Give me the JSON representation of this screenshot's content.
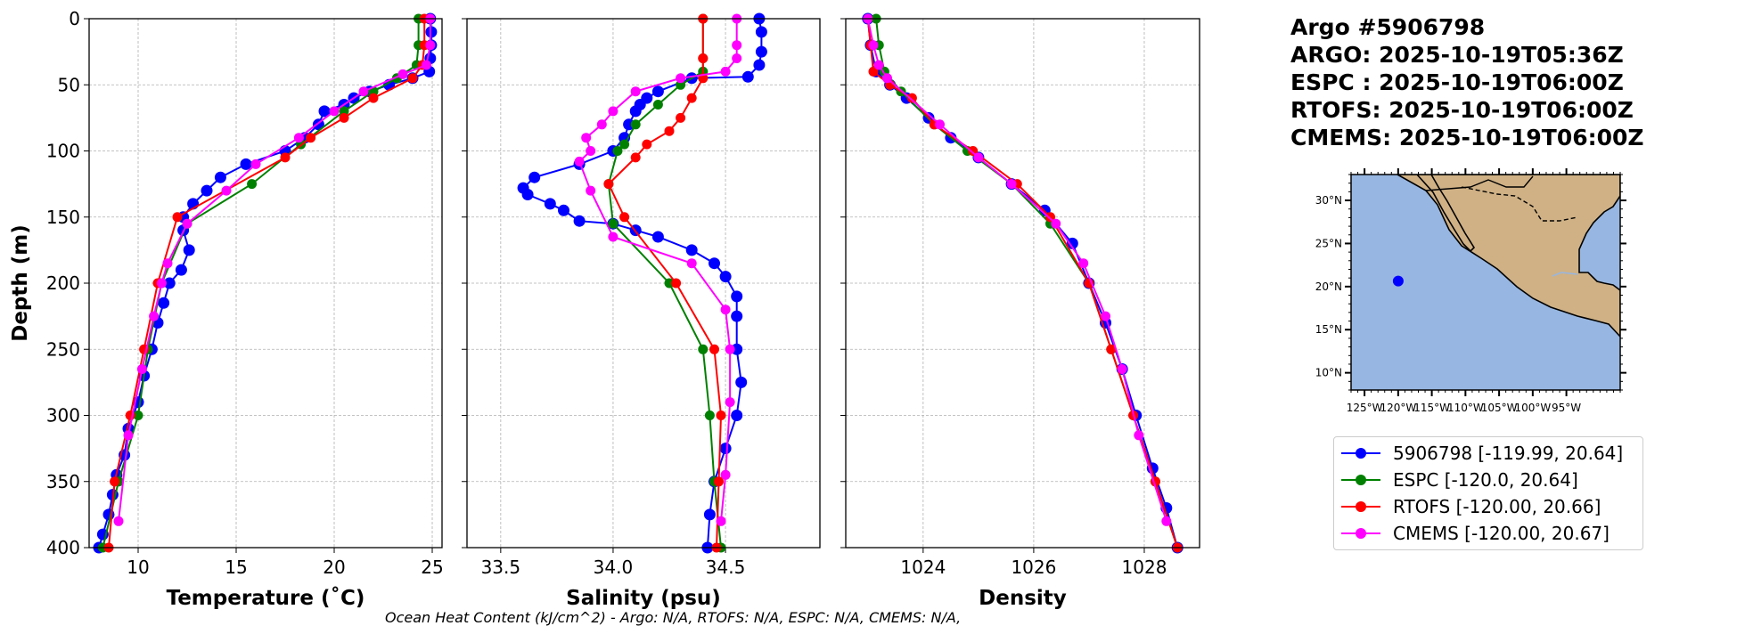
{
  "chart_data": [
    {
      "type": "line",
      "xlabel": "Temperature (˚C)",
      "ylabel": "Depth (m)",
      "xlim": [
        7.5,
        25.5
      ],
      "ylim": [
        400,
        0
      ],
      "xticks": [
        10,
        15,
        20,
        25
      ],
      "yticks": [
        0,
        50,
        100,
        150,
        200,
        250,
        300,
        350,
        400
      ],
      "grid": true,
      "series": [
        {
          "name": "5906798",
          "color": "#0000ff",
          "points": [
            [
              24.9,
              0
            ],
            [
              24.95,
              10
            ],
            [
              24.95,
              20
            ],
            [
              24.9,
              30
            ],
            [
              24.85,
              40
            ],
            [
              24.0,
              45
            ],
            [
              22.8,
              50
            ],
            [
              21.8,
              55
            ],
            [
              21.0,
              60
            ],
            [
              20.5,
              65
            ],
            [
              19.5,
              70
            ],
            [
              19.2,
              80
            ],
            [
              18.5,
              90
            ],
            [
              17.5,
              100
            ],
            [
              15.5,
              110
            ],
            [
              14.2,
              120
            ],
            [
              13.5,
              130
            ],
            [
              12.8,
              140
            ],
            [
              12.3,
              150
            ],
            [
              12.3,
              160
            ],
            [
              12.6,
              175
            ],
            [
              12.2,
              190
            ],
            [
              11.6,
              200
            ],
            [
              11.3,
              215
            ],
            [
              11.0,
              230
            ],
            [
              10.7,
              250
            ],
            [
              10.3,
              270
            ],
            [
              10.0,
              290
            ],
            [
              9.5,
              310
            ],
            [
              9.3,
              330
            ],
            [
              8.9,
              345
            ],
            [
              8.7,
              360
            ],
            [
              8.5,
              375
            ],
            [
              8.2,
              390
            ],
            [
              8.0,
              400
            ]
          ]
        },
        {
          "name": "ESPC",
          "color": "#008000",
          "points": [
            [
              24.3,
              0
            ],
            [
              24.3,
              20
            ],
            [
              24.2,
              35
            ],
            [
              23.2,
              45
            ],
            [
              22.0,
              55
            ],
            [
              20.5,
              70
            ],
            [
              18.3,
              95
            ],
            [
              15.8,
              125
            ],
            [
              12.5,
              155
            ],
            [
              11.2,
              200
            ],
            [
              10.5,
              250
            ],
            [
              10.0,
              300
            ],
            [
              9.0,
              350
            ],
            [
              8.2,
              400
            ]
          ]
        },
        {
          "name": "RTOFS",
          "color": "#ff0000",
          "points": [
            [
              24.6,
              0
            ],
            [
              24.6,
              20
            ],
            [
              24.5,
              35
            ],
            [
              24.0,
              45
            ],
            [
              22.0,
              60
            ],
            [
              20.5,
              75
            ],
            [
              18.8,
              90
            ],
            [
              17.5,
              105
            ],
            [
              12.0,
              150
            ],
            [
              11.0,
              200
            ],
            [
              10.3,
              250
            ],
            [
              9.6,
              300
            ],
            [
              8.8,
              350
            ],
            [
              8.5,
              400
            ]
          ]
        },
        {
          "name": "CMEMS",
          "color": "#ff00ff",
          "points": [
            [
              24.9,
              0
            ],
            [
              24.9,
              20
            ],
            [
              24.7,
              35
            ],
            [
              23.5,
              42
            ],
            [
              21.5,
              55
            ],
            [
              20.0,
              70
            ],
            [
              18.2,
              90
            ],
            [
              16.0,
              110
            ],
            [
              14.5,
              130
            ],
            [
              12.5,
              155
            ],
            [
              11.5,
              185
            ],
            [
              11.2,
              200
            ],
            [
              10.8,
              225
            ],
            [
              10.2,
              265
            ],
            [
              9.5,
              315
            ],
            [
              9.0,
              380
            ]
          ]
        }
      ]
    },
    {
      "type": "line",
      "xlabel": "Salinity (psu)",
      "ylabel": "",
      "xlim": [
        33.35,
        34.92
      ],
      "ylim": [
        400,
        0
      ],
      "xticks": [
        33.5,
        34.0,
        34.5
      ],
      "tick_labels": [
        "33.5",
        "34.0",
        "34.5"
      ],
      "yticks": [
        0,
        50,
        100,
        150,
        200,
        250,
        300,
        350,
        400
      ],
      "grid": true,
      "series": [
        {
          "name": "5906798",
          "color": "#0000ff",
          "points": [
            [
              34.65,
              0
            ],
            [
              34.66,
              10
            ],
            [
              34.66,
              25
            ],
            [
              34.65,
              35
            ],
            [
              34.6,
              44
            ],
            [
              34.35,
              45
            ],
            [
              34.2,
              55
            ],
            [
              34.15,
              60
            ],
            [
              34.12,
              65
            ],
            [
              34.1,
              70
            ],
            [
              34.07,
              80
            ],
            [
              34.05,
              90
            ],
            [
              34.0,
              100
            ],
            [
              33.85,
              110
            ],
            [
              33.65,
              120
            ],
            [
              33.6,
              128
            ],
            [
              33.62,
              133
            ],
            [
              33.72,
              140
            ],
            [
              33.78,
              145
            ],
            [
              33.85,
              153
            ],
            [
              34.0,
              155
            ],
            [
              34.1,
              160
            ],
            [
              34.2,
              165
            ],
            [
              34.35,
              175
            ],
            [
              34.45,
              185
            ],
            [
              34.5,
              195
            ],
            [
              34.55,
              210
            ],
            [
              34.55,
              225
            ],
            [
              34.55,
              250
            ],
            [
              34.57,
              275
            ],
            [
              34.55,
              300
            ],
            [
              34.5,
              325
            ],
            [
              34.45,
              350
            ],
            [
              34.43,
              375
            ],
            [
              34.42,
              400
            ]
          ]
        },
        {
          "name": "ESPC",
          "color": "#008000",
          "points": [
            [
              34.4,
              0
            ],
            [
              34.4,
              30
            ],
            [
              34.4,
              40
            ],
            [
              34.3,
              50
            ],
            [
              34.2,
              65
            ],
            [
              34.1,
              80
            ],
            [
              34.05,
              95
            ],
            [
              34.02,
              100
            ],
            [
              33.98,
              125
            ],
            [
              34.0,
              155
            ],
            [
              34.25,
              200
            ],
            [
              34.4,
              250
            ],
            [
              34.43,
              300
            ],
            [
              34.45,
              350
            ],
            [
              34.48,
              400
            ]
          ]
        },
        {
          "name": "RTOFS",
          "color": "#ff0000",
          "points": [
            [
              34.4,
              0
            ],
            [
              34.4,
              30
            ],
            [
              34.4,
              45
            ],
            [
              34.35,
              60
            ],
            [
              34.3,
              75
            ],
            [
              34.25,
              85
            ],
            [
              34.15,
              95
            ],
            [
              34.1,
              105
            ],
            [
              33.98,
              125
            ],
            [
              34.05,
              150
            ],
            [
              34.28,
              200
            ],
            [
              34.45,
              250
            ],
            [
              34.48,
              300
            ],
            [
              34.47,
              350
            ],
            [
              34.46,
              400
            ]
          ]
        },
        {
          "name": "CMEMS",
          "color": "#ff00ff",
          "points": [
            [
              34.55,
              0
            ],
            [
              34.55,
              20
            ],
            [
              34.55,
              30
            ],
            [
              34.5,
              40
            ],
            [
              34.3,
              45
            ],
            [
              34.1,
              55
            ],
            [
              34.0,
              70
            ],
            [
              33.95,
              80
            ],
            [
              33.88,
              90
            ],
            [
              33.9,
              100
            ],
            [
              33.85,
              108
            ],
            [
              33.9,
              130
            ],
            [
              34.0,
              165
            ],
            [
              34.35,
              185
            ],
            [
              34.5,
              220
            ],
            [
              34.52,
              250
            ],
            [
              34.52,
              290
            ],
            [
              34.5,
              345
            ],
            [
              34.48,
              380
            ]
          ]
        }
      ]
    },
    {
      "type": "line",
      "xlabel": "Density",
      "ylabel": "",
      "xlim": [
        1022.6,
        1029.0
      ],
      "ylim": [
        400,
        0
      ],
      "xticks": [
        1024,
        1026,
        1028
      ],
      "yticks": [
        0,
        50,
        100,
        150,
        200,
        250,
        300,
        350,
        400
      ],
      "grid": true,
      "series": [
        {
          "name": "5906798",
          "color": "#0000ff",
          "points": [
            [
              1023.0,
              0
            ],
            [
              1023.05,
              20
            ],
            [
              1023.15,
              40
            ],
            [
              1023.4,
              50
            ],
            [
              1023.7,
              60
            ],
            [
              1024.1,
              75
            ],
            [
              1024.5,
              90
            ],
            [
              1025.0,
              105
            ],
            [
              1025.6,
              125
            ],
            [
              1026.2,
              145
            ],
            [
              1026.7,
              170
            ],
            [
              1027.0,
              200
            ],
            [
              1027.3,
              230
            ],
            [
              1027.6,
              265
            ],
            [
              1027.85,
              300
            ],
            [
              1028.15,
              340
            ],
            [
              1028.4,
              370
            ],
            [
              1028.6,
              400
            ]
          ]
        },
        {
          "name": "ESPC",
          "color": "#008000",
          "points": [
            [
              1023.15,
              0
            ],
            [
              1023.2,
              20
            ],
            [
              1023.3,
              40
            ],
            [
              1023.6,
              55
            ],
            [
              1024.2,
              80
            ],
            [
              1024.8,
              100
            ],
            [
              1025.6,
              125
            ],
            [
              1026.3,
              155
            ],
            [
              1027.0,
              200
            ],
            [
              1027.4,
              250
            ],
            [
              1027.8,
              300
            ],
            [
              1028.2,
              350
            ],
            [
              1028.6,
              400
            ]
          ]
        },
        {
          "name": "RTOFS",
          "color": "#ff0000",
          "points": [
            [
              1023.0,
              0
            ],
            [
              1023.05,
              20
            ],
            [
              1023.1,
              40
            ],
            [
              1023.4,
              50
            ],
            [
              1023.8,
              60
            ],
            [
              1024.2,
              80
            ],
            [
              1024.9,
              100
            ],
            [
              1025.7,
              125
            ],
            [
              1026.3,
              150
            ],
            [
              1027.0,
              200
            ],
            [
              1027.4,
              250
            ],
            [
              1027.8,
              300
            ],
            [
              1028.2,
              350
            ],
            [
              1028.6,
              400
            ]
          ]
        },
        {
          "name": "CMEMS",
          "color": "#ff00ff",
          "points": [
            [
              1023.0,
              0
            ],
            [
              1023.1,
              20
            ],
            [
              1023.2,
              35
            ],
            [
              1023.35,
              45
            ],
            [
              1024.3,
              80
            ],
            [
              1025.0,
              105
            ],
            [
              1025.6,
              125
            ],
            [
              1026.4,
              155
            ],
            [
              1026.9,
              185
            ],
            [
              1027.3,
              225
            ],
            [
              1027.6,
              265
            ],
            [
              1027.9,
              315
            ],
            [
              1028.4,
              380
            ]
          ]
        }
      ]
    }
  ],
  "info": {
    "title": "Argo #5906798",
    "lines": [
      "ARGO: 2025-10-19T05:36Z",
      "ESPC : 2025-10-19T06:00Z",
      "RTOFS: 2025-10-19T06:00Z",
      "CMEMS: 2025-10-19T06:00Z"
    ]
  },
  "map": {
    "lon_range": [
      -127,
      -87
    ],
    "lat_range": [
      8,
      33
    ],
    "lat_ticks": [
      30,
      25,
      20,
      15,
      10
    ],
    "lat_labels": [
      "30°N",
      "25°N",
      "20°N",
      "15°N",
      "10°N"
    ],
    "lon_ticks": [
      -125,
      -120,
      -115,
      -110,
      -105,
      -100,
      -95
    ],
    "lon_labels": [
      "125°W",
      "120°W",
      "115°W",
      "110°W",
      "105°W",
      "100°W",
      "95°W"
    ],
    "float_position": [
      -119.99,
      20.64
    ],
    "float_color": "#0000ff",
    "ocean_color": "#97b6e1",
    "land_color": "#cfb185"
  },
  "legend": [
    {
      "label": "5906798 [-119.99, 20.64]",
      "color": "#0000ff"
    },
    {
      "label": "ESPC [-120.0, 20.64]",
      "color": "#008000"
    },
    {
      "label": "RTOFS [-120.00, 20.66]",
      "color": "#ff0000"
    },
    {
      "label": "CMEMS [-120.00, 20.67]",
      "color": "#ff00ff"
    }
  ],
  "footer": {
    "ohc": "Ocean Heat Content (kJ/cm^2) - Argo: N/A,  RTOFS: N/A,  ESPC: N/A,  CMEMS: N/A,"
  }
}
